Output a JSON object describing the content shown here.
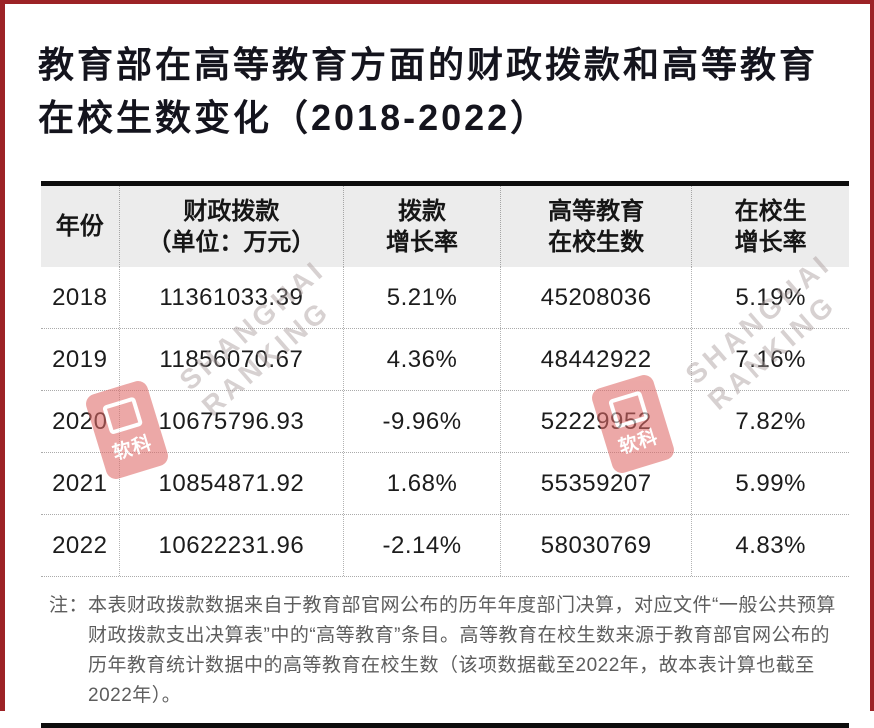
{
  "page": {
    "border_color": "#9c2226",
    "background": "#ffffff",
    "header_bg": "#ececec",
    "note_text_color": "#5d5d5d",
    "rule_color": "#0d0d0d"
  },
  "title": {
    "line1": "教育部在高等教育方面的财政拨款和高等教育",
    "line2": "在校生数变化（2018-2022）"
  },
  "table": {
    "columns": [
      {
        "line1": "年份",
        "line2": ""
      },
      {
        "line1": "财政拨款",
        "line2": "（单位：万元）"
      },
      {
        "line1": "拨款",
        "line2": "增长率"
      },
      {
        "line1": "高等教育",
        "line2": "在校生数"
      },
      {
        "line1": "在校生",
        "line2": "增长率"
      }
    ],
    "rows": [
      {
        "year": "2018",
        "funding": "11361033.39",
        "funding_growth": "5.21%",
        "students": "45208036",
        "students_growth": "5.19%"
      },
      {
        "year": "2019",
        "funding": "11856070.67",
        "funding_growth": "4.36%",
        "students": "48442922",
        "students_growth": "7.16%"
      },
      {
        "year": "2020",
        "funding": "10675796.93",
        "funding_growth": "-9.96%",
        "students": "52229952",
        "students_growth": "7.82%"
      },
      {
        "year": "2021",
        "funding": "10854871.92",
        "funding_growth": "1.68%",
        "students": "55359207",
        "students_growth": "5.99%"
      },
      {
        "year": "2022",
        "funding": "10622231.96",
        "funding_growth": "-2.14%",
        "students": "58030769",
        "students_growth": "4.83%"
      }
    ]
  },
  "note": {
    "prefix": "注：",
    "text": "本表财政拨款数据来自于教育部官网公布的历年年度部门决算，对应文件“一般公共预算财政拨款支出决算表”中的“高等教育”条目。高等教育在校生数来源于教育部官网公布的历年教育统计数据中的高等教育在校生数（该项数据截至2022年，故本表计算也截至2022年）。"
  },
  "watermark": {
    "seal_label": "软科",
    "text_line1": "SHANGHAI",
    "text_line2": "RANKING"
  },
  "chart_data": {
    "type": "table",
    "title": "教育部在高等教育方面的财政拨款和高等教育在校生数变化（2018-2022）",
    "columns": [
      "年份",
      "财政拨款（单位：万元）",
      "拨款增长率",
      "高等教育在校生数",
      "在校生增长率"
    ],
    "rows": [
      [
        "2018",
        11361033.39,
        "5.21%",
        45208036,
        "5.19%"
      ],
      [
        "2019",
        11856070.67,
        "4.36%",
        48442922,
        "7.16%"
      ],
      [
        "2020",
        10675796.93,
        "-9.96%",
        52229952,
        "7.82%"
      ],
      [
        "2021",
        10854871.92,
        "1.68%",
        55359207,
        "5.99%"
      ],
      [
        "2022",
        10622231.96,
        "-2.14%",
        58030769,
        "4.83%"
      ]
    ],
    "note": "注：本表财政拨款数据来自于教育部官网公布的历年年度部门决算，对应文件“一般公共预算财政拨款支出决算表”中的“高等教育”条目。高等教育在校生数来源于教育部官网公布的历年教育统计数据中的高等教育在校生数（该项数据截至2022年，故本表计算也截至2022年）。"
  }
}
